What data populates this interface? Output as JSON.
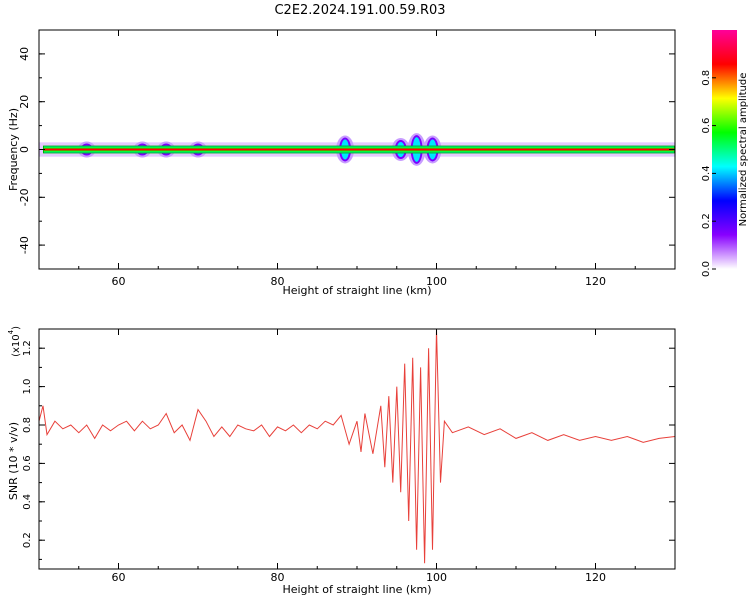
{
  "title": "C2E2.2024.191.00.59.R03",
  "chart_data": [
    {
      "type": "heatmap",
      "xlabel": "Height of straight line (km)",
      "ylabel": "Frequency (Hz)",
      "xlim": [
        50,
        130
      ],
      "ylim": [
        -50,
        50
      ],
      "xticks": [
        60,
        80,
        100,
        120
      ],
      "yticks": [
        40,
        20,
        0,
        -20,
        -40
      ],
      "colorbar": {
        "label": "Normalized spectral amplitude",
        "range": [
          0.0,
          1.0
        ],
        "ticks": [
          "0.0",
          "0.2",
          "0.4",
          "0.6",
          "0.8"
        ],
        "tick_values": [
          0.0,
          0.2,
          0.4,
          0.6,
          0.8
        ],
        "colormap": [
          "#ffffff",
          "#8800ff",
          "#0000ff",
          "#00ffff",
          "#00ff00",
          "#ffff00",
          "#ff0000",
          "#ff0099"
        ]
      },
      "band": {
        "center_hz": 0,
        "core_halfwidth_hz": 1,
        "spread_halfwidth_hz": 3,
        "disturbances": [
          {
            "x": 56,
            "spread_hz": 2.5
          },
          {
            "x": 63,
            "spread_hz": 2.5
          },
          {
            "x": 66,
            "spread_hz": 2.5
          },
          {
            "x": 70,
            "spread_hz": 2.5
          },
          {
            "x": 88.5,
            "spread_hz": 5
          },
          {
            "x": 95.5,
            "spread_hz": 4
          },
          {
            "x": 97.5,
            "spread_hz": 6
          },
          {
            "x": 99.5,
            "spread_hz": 5
          }
        ]
      }
    },
    {
      "type": "line",
      "xlabel": "Height of straight line (km)",
      "ylabel": "SNR (10 * v/v)",
      "multiplier_label": "(x10",
      "multiplier_exponent": "4",
      "multiplier_close": ")",
      "xlim": [
        50,
        130
      ],
      "ylim": [
        0.05,
        1.3
      ],
      "xticks": [
        60,
        80,
        100,
        120
      ],
      "yticks": [
        1.2,
        1.0,
        0.8,
        0.6,
        0.4,
        0.2
      ],
      "ytick_labels": [
        "1.2",
        "1.0",
        "0.8",
        "0.6",
        "0.4",
        "0.2"
      ],
      "color": "#e8403a",
      "series": [
        {
          "x": [
            50,
            50.5,
            51,
            52,
            53,
            54,
            55,
            56,
            57,
            58,
            59,
            60,
            61,
            62,
            63,
            64,
            65,
            66,
            67,
            68,
            69,
            70,
            71,
            72,
            73,
            74,
            75,
            76,
            77,
            78,
            79,
            80,
            81,
            82,
            83,
            84,
            85,
            86,
            87,
            88,
            89,
            90,
            90.5,
            91,
            92,
            93,
            93.5,
            94,
            94.5,
            95,
            95.5,
            96,
            96.5,
            97,
            97.5,
            98,
            98.5,
            99,
            99.5,
            100,
            100.5,
            101,
            102,
            104,
            106,
            108,
            110,
            112,
            114,
            116,
            118,
            120,
            122,
            124,
            126,
            128,
            130
          ],
          "y": [
            0.82,
            0.9,
            0.75,
            0.82,
            0.78,
            0.8,
            0.76,
            0.8,
            0.73,
            0.8,
            0.77,
            0.8,
            0.82,
            0.77,
            0.82,
            0.78,
            0.8,
            0.86,
            0.76,
            0.8,
            0.72,
            0.88,
            0.82,
            0.74,
            0.79,
            0.74,
            0.8,
            0.78,
            0.77,
            0.8,
            0.74,
            0.79,
            0.77,
            0.8,
            0.76,
            0.8,
            0.78,
            0.82,
            0.8,
            0.85,
            0.7,
            0.82,
            0.66,
            0.86,
            0.65,
            0.9,
            0.58,
            0.95,
            0.5,
            1.0,
            0.45,
            1.12,
            0.3,
            1.15,
            0.15,
            1.1,
            0.08,
            1.2,
            0.15,
            1.3,
            0.5,
            0.82,
            0.76,
            0.79,
            0.75,
            0.78,
            0.73,
            0.76,
            0.72,
            0.75,
            0.72,
            0.74,
            0.72,
            0.74,
            0.71,
            0.73,
            0.74
          ]
        }
      ]
    }
  ]
}
